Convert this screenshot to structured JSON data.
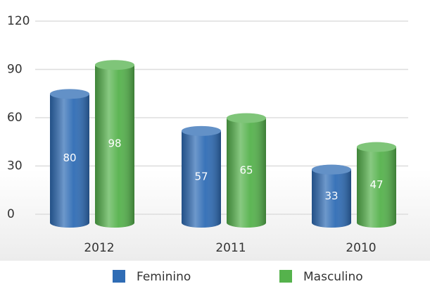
{
  "chart_data": {
    "type": "bar",
    "categories": [
      "2012",
      "2011",
      "2010"
    ],
    "series": [
      {
        "name": "Feminino",
        "color": "#2f6cb5",
        "values": [
          80,
          57,
          33
        ]
      },
      {
        "name": "Masculino",
        "color": "#55b24c",
        "values": [
          98,
          65,
          47
        ]
      }
    ],
    "ylim": [
      0,
      120
    ],
    "yticks": [
      0,
      30,
      60,
      90,
      120
    ],
    "grid": true
  }
}
